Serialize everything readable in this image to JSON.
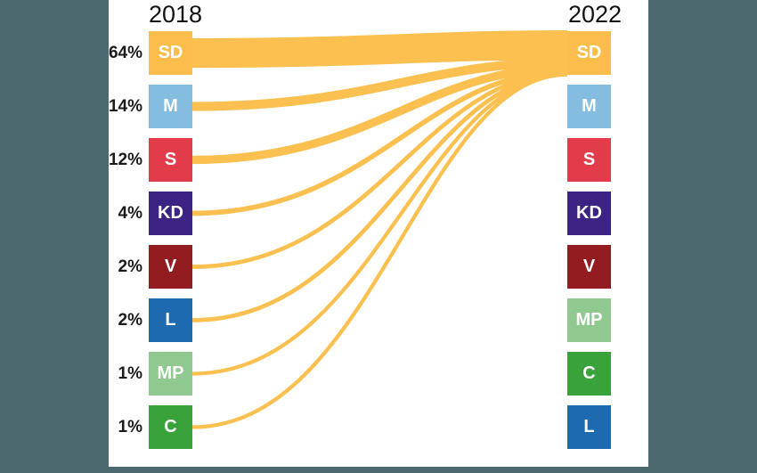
{
  "frame": {
    "color": "#4D6970"
  },
  "chart_data": {
    "type": "sankey",
    "left_year": "2018",
    "right_year": "2022",
    "flow_color": "#FBC050",
    "legend_position": "none",
    "left_nodes": [
      {
        "code": "SD",
        "share_label": "64%",
        "share_pct": 64,
        "color": "#FBBE4B"
      },
      {
        "code": "M",
        "share_label": "14%",
        "share_pct": 14,
        "color": "#85BDE0"
      },
      {
        "code": "S",
        "share_label": "12%",
        "share_pct": 12,
        "color": "#E23C4B"
      },
      {
        "code": "KD",
        "share_label": "4%",
        "share_pct": 4,
        "color": "#3B2484"
      },
      {
        "code": "V",
        "share_label": "2%",
        "share_pct": 2,
        "color": "#921C20"
      },
      {
        "code": "L",
        "share_label": "2%",
        "share_pct": 2,
        "color": "#1E6AB0"
      },
      {
        "code": "MP",
        "share_label": "1%",
        "share_pct": 1,
        "color": "#8FC98F"
      },
      {
        "code": "C",
        "share_label": "1%",
        "share_pct": 1,
        "color": "#3AA23A"
      }
    ],
    "right_nodes": [
      {
        "code": "SD",
        "color": "#FBBE4B"
      },
      {
        "code": "M",
        "color": "#85BDE0"
      },
      {
        "code": "S",
        "color": "#E23C4B"
      },
      {
        "code": "KD",
        "color": "#3B2484"
      },
      {
        "code": "V",
        "color": "#921C20"
      },
      {
        "code": "MP",
        "color": "#8FC98F"
      },
      {
        "code": "C",
        "color": "#3AA23A"
      },
      {
        "code": "L",
        "color": "#1E6AB0"
      }
    ],
    "flows": [
      {
        "source": "SD",
        "target": "SD",
        "pct": 64
      },
      {
        "source": "M",
        "target": "SD",
        "pct": 14
      },
      {
        "source": "S",
        "target": "SD",
        "pct": 12
      },
      {
        "source": "KD",
        "target": "SD",
        "pct": 4
      },
      {
        "source": "V",
        "target": "SD",
        "pct": 2
      },
      {
        "source": "L",
        "target": "SD",
        "pct": 2
      },
      {
        "source": "MP",
        "target": "SD",
        "pct": 1
      },
      {
        "source": "C",
        "target": "SD",
        "pct": 1
      }
    ]
  }
}
